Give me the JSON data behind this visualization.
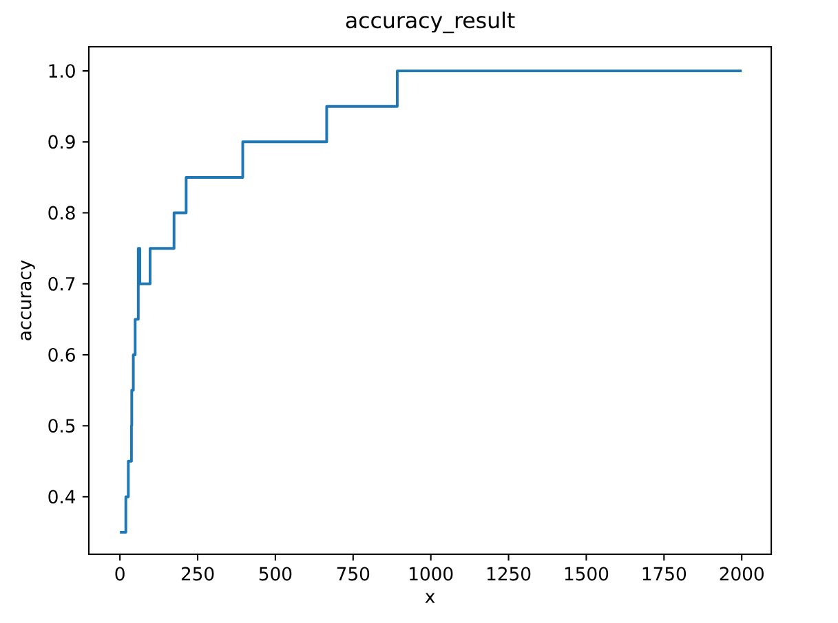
{
  "chart_data": {
    "type": "step",
    "title": "accuracy_result",
    "xlabel": "x",
    "ylabel": "accuracy",
    "x": [
      0,
      19,
      27,
      37,
      38,
      43,
      49,
      59,
      64,
      97,
      174,
      213,
      395,
      665,
      892,
      2000
    ],
    "series": [
      {
        "color": "#1f77b4",
        "values": [
          0.35,
          0.4,
          0.45,
          0.5,
          0.55,
          0.6,
          0.65,
          0.75,
          0.7,
          0.75,
          0.8,
          0.85,
          0.9,
          0.95,
          1.0,
          1.0
        ]
      }
    ],
    "xlim": [
      -100,
      2095
    ],
    "ylim": [
      0.319,
      1.034
    ],
    "xticks": [
      0,
      250,
      500,
      750,
      1000,
      1250,
      1500,
      1750,
      2000
    ],
    "yticks": [
      {
        "value": 0.4,
        "label": "0.4"
      },
      {
        "value": 0.5,
        "label": "0.5"
      },
      {
        "value": 0.6,
        "label": "0.6"
      },
      {
        "value": 0.7,
        "label": "0.7"
      },
      {
        "value": 0.8,
        "label": "0.8"
      },
      {
        "value": 0.9,
        "label": "0.9"
      },
      {
        "value": 1.0,
        "label": "1.0"
      }
    ],
    "marker": "none",
    "line_style": "solid"
  }
}
